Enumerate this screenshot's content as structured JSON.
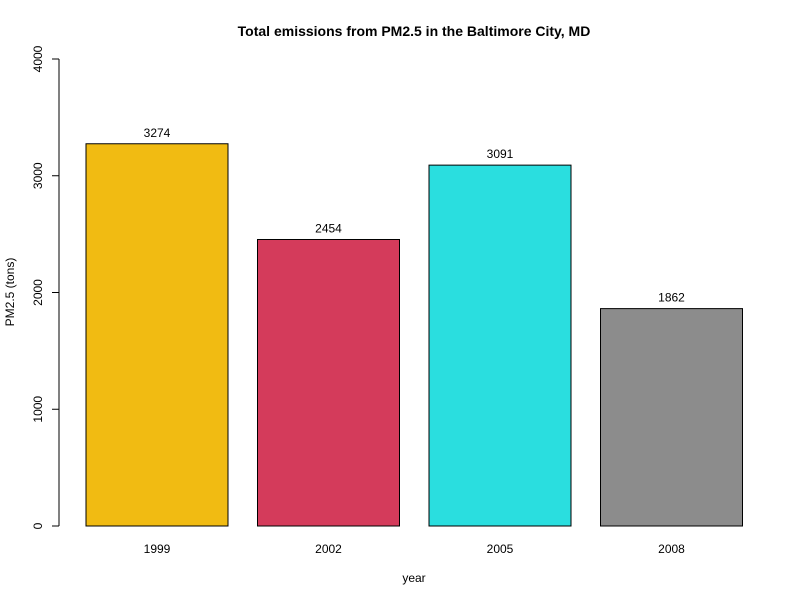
{
  "chart_data": {
    "type": "bar",
    "title": "Total emissions from PM2.5 in the Baltimore City, MD",
    "xlabel": "year",
    "ylabel": "PM2.5 (tons)",
    "categories": [
      "1999",
      "2002",
      "2005",
      "2008"
    ],
    "values": [
      3274,
      2454,
      3091,
      1862
    ],
    "value_labels": [
      "3274",
      "2454",
      "3091",
      "1862"
    ],
    "colors": [
      "#F1BB12",
      "#D43B5B",
      "#2ADEDF",
      "#8C8C8C"
    ],
    "ylim": [
      0,
      4000
    ],
    "yticks": [
      0,
      1000,
      2000,
      3000,
      4000
    ],
    "ytick_labels": [
      "0",
      "1000",
      "2000",
      "3000",
      "4000"
    ],
    "grid": false,
    "legend": "none"
  }
}
